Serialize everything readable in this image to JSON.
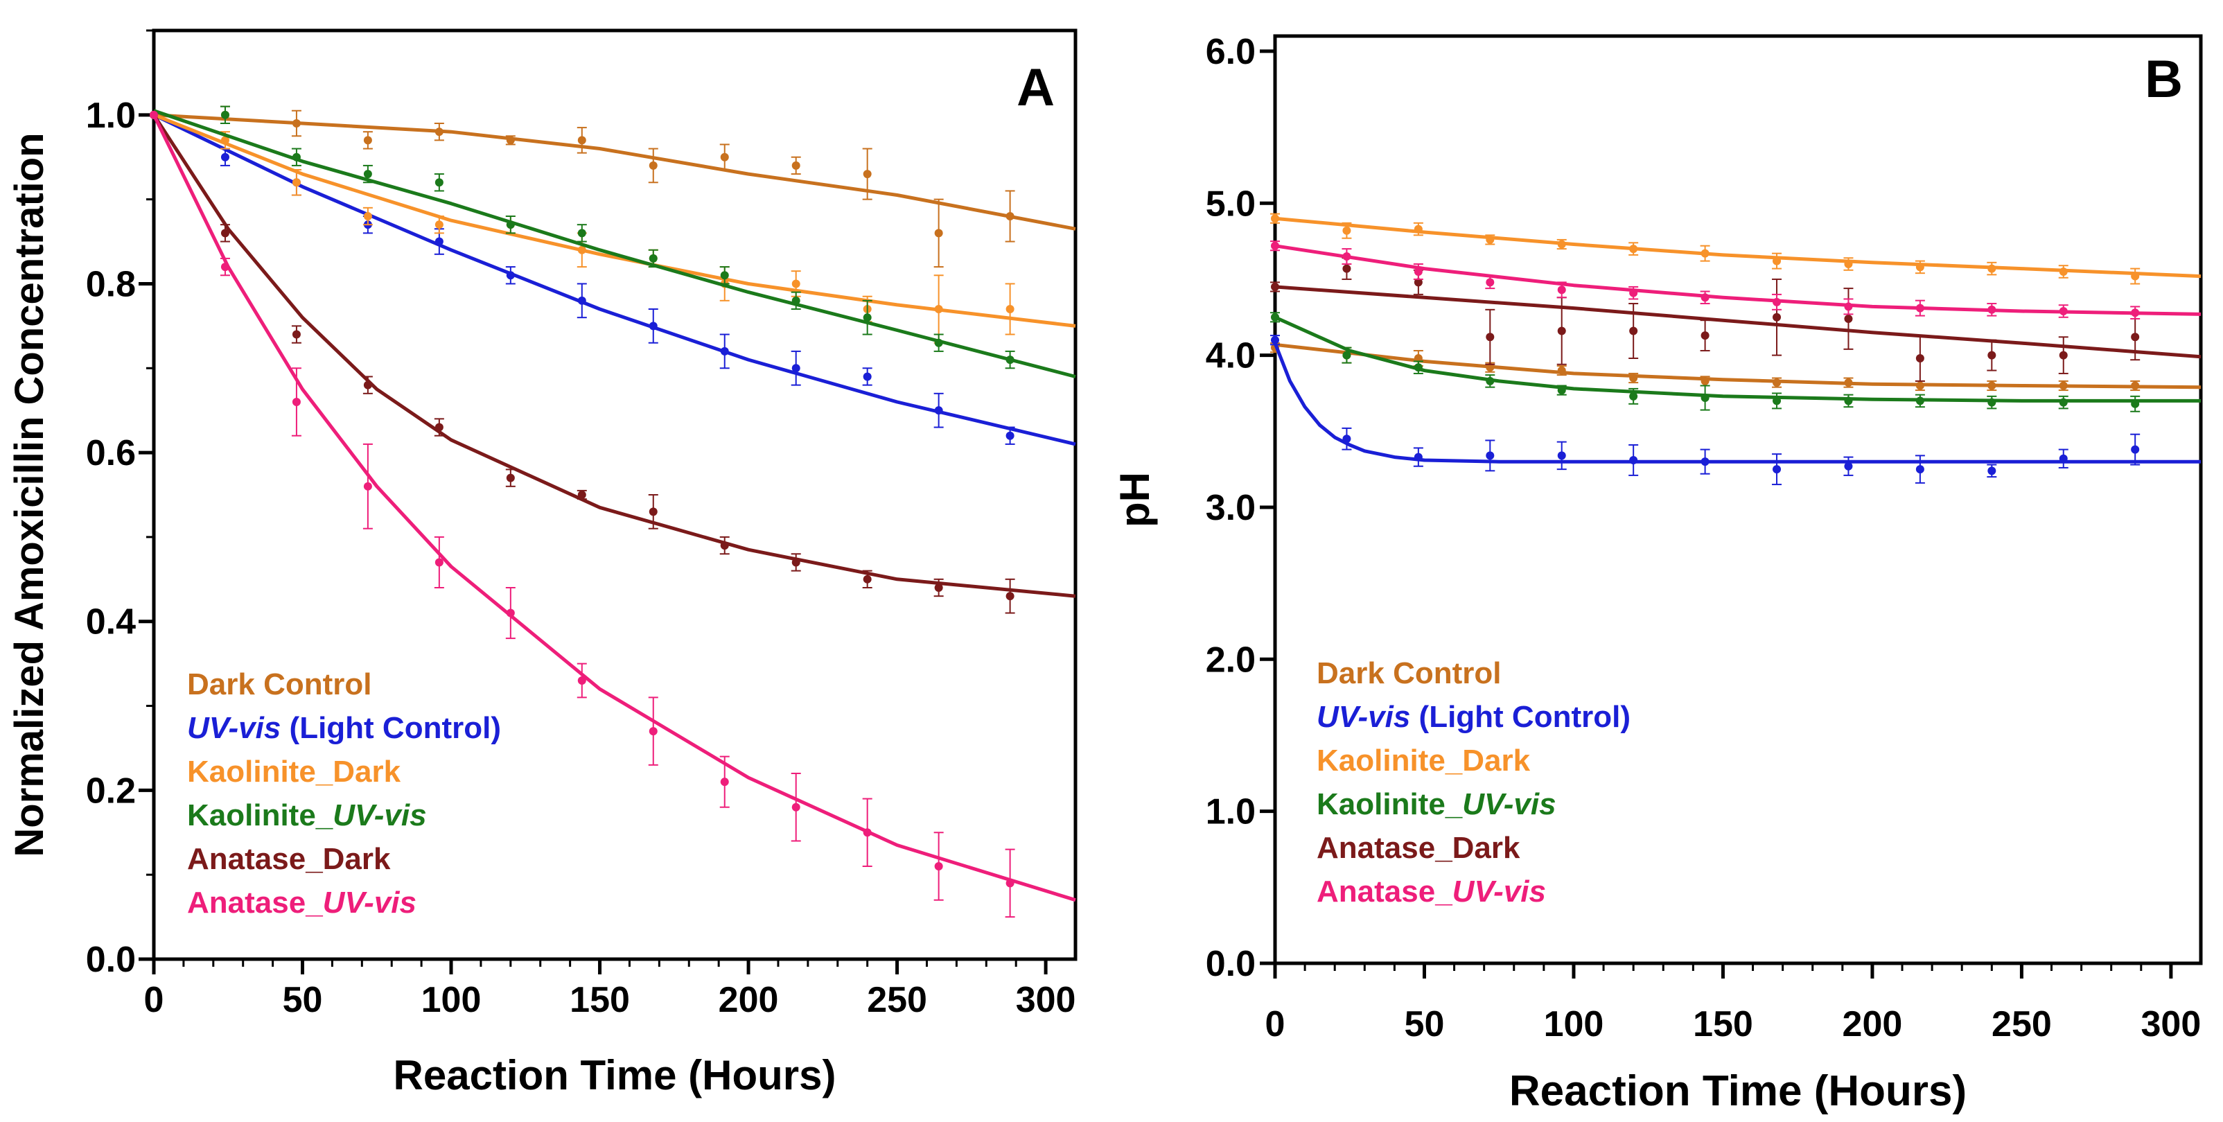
{
  "chart_data": [
    {
      "type": "line",
      "panel_label": "A",
      "xlabel": "Reaction Time (Hours)",
      "ylabel": "Normalized Amoxicillin Concentration",
      "xlim": [
        0,
        310
      ],
      "ylim": [
        0,
        1.1
      ],
      "xticks": [
        0,
        50,
        100,
        150,
        200,
        250,
        300
      ],
      "xtick_labels": [
        "0",
        "50",
        "100",
        "150",
        "200",
        "250",
        "300"
      ],
      "yticks": [
        0.0,
        0.2,
        0.4,
        0.6,
        0.8,
        1.0
      ],
      "ytick_labels": [
        "0.0",
        "0.2",
        "0.4",
        "0.6",
        "0.8",
        "1.0"
      ],
      "grid": false,
      "legend_position": "bottom-left",
      "series": [
        {
          "name": "Dark Control",
          "legend_parts": [
            "Dark Control"
          ],
          "legend_italic": [
            false
          ],
          "color": "#C8711E",
          "x": [
            0,
            24,
            48,
            72,
            96,
            120,
            144,
            168,
            192,
            216,
            240,
            264,
            288
          ],
          "y": [
            1.0,
            1.0,
            0.99,
            0.97,
            0.98,
            0.97,
            0.97,
            0.94,
            0.95,
            0.94,
            0.93,
            0.86,
            0.88
          ],
          "err": [
            0.0,
            0.01,
            0.015,
            0.01,
            0.01,
            0.005,
            0.015,
            0.02,
            0.015,
            0.01,
            0.03,
            0.04,
            0.03
          ],
          "fit_x": [
            0,
            50,
            100,
            150,
            200,
            250,
            310
          ],
          "fit_y": [
            1.0,
            0.99,
            0.98,
            0.96,
            0.93,
            0.905,
            0.865
          ]
        },
        {
          "name": "UV-vis (Light Control)",
          "legend_parts": [
            "UV-vis",
            " (Light Control)"
          ],
          "legend_italic": [
            true,
            false
          ],
          "color": "#1A1FD6",
          "x": [
            0,
            24,
            48,
            72,
            96,
            120,
            144,
            168,
            192,
            216,
            240,
            264,
            288
          ],
          "y": [
            1.0,
            0.95,
            0.92,
            0.87,
            0.85,
            0.81,
            0.78,
            0.75,
            0.72,
            0.7,
            0.69,
            0.65,
            0.62
          ],
          "err": [
            0.0,
            0.01,
            0.015,
            0.01,
            0.015,
            0.01,
            0.02,
            0.02,
            0.02,
            0.02,
            0.01,
            0.02,
            0.01
          ],
          "fit_x": [
            0,
            50,
            100,
            150,
            200,
            250,
            310
          ],
          "fit_y": [
            1.0,
            0.915,
            0.84,
            0.77,
            0.71,
            0.66,
            0.61
          ]
        },
        {
          "name": "Kaolinite_Dark",
          "legend_parts": [
            "Kaolinite_Dark"
          ],
          "legend_italic": [
            false
          ],
          "color": "#F7922A",
          "x": [
            0,
            24,
            48,
            72,
            96,
            120,
            144,
            168,
            192,
            216,
            240,
            264,
            288
          ],
          "y": [
            1.0,
            0.97,
            0.92,
            0.88,
            0.87,
            0.87,
            0.84,
            0.83,
            0.8,
            0.8,
            0.77,
            0.77,
            0.77
          ],
          "err": [
            0.0,
            0.01,
            0.015,
            0.01,
            0.01,
            0.01,
            0.02,
            0.01,
            0.02,
            0.015,
            0.015,
            0.04,
            0.03
          ],
          "fit_x": [
            0,
            50,
            100,
            150,
            200,
            250,
            310
          ],
          "fit_y": [
            1.0,
            0.93,
            0.875,
            0.835,
            0.8,
            0.775,
            0.75
          ]
        },
        {
          "name": "Kaolinite_UV-vis",
          "legend_parts": [
            "Kaolinite_",
            "UV-vis"
          ],
          "legend_italic": [
            false,
            true
          ],
          "color": "#1B7A1B",
          "x": [
            0,
            24,
            48,
            72,
            96,
            120,
            144,
            168,
            192,
            216,
            240,
            264,
            288
          ],
          "y": [
            1.0,
            1.0,
            0.95,
            0.93,
            0.92,
            0.87,
            0.86,
            0.83,
            0.81,
            0.78,
            0.76,
            0.73,
            0.71
          ],
          "err": [
            0.0,
            0.01,
            0.01,
            0.01,
            0.01,
            0.01,
            0.01,
            0.01,
            0.01,
            0.01,
            0.02,
            0.01,
            0.01
          ],
          "fit_x": [
            0,
            50,
            100,
            150,
            200,
            250,
            310
          ],
          "fit_y": [
            1.005,
            0.945,
            0.895,
            0.84,
            0.79,
            0.745,
            0.69
          ]
        },
        {
          "name": "Anatase_Dark",
          "legend_parts": [
            "Anatase_Dark"
          ],
          "legend_italic": [
            false
          ],
          "color": "#7B1A1A",
          "x": [
            0,
            24,
            48,
            72,
            96,
            120,
            144,
            168,
            192,
            216,
            240,
            264,
            288
          ],
          "y": [
            1.0,
            0.86,
            0.74,
            0.68,
            0.63,
            0.57,
            0.55,
            0.53,
            0.49,
            0.47,
            0.45,
            0.44,
            0.43
          ],
          "err": [
            0.0,
            0.01,
            0.01,
            0.01,
            0.01,
            0.01,
            0.005,
            0.02,
            0.01,
            0.01,
            0.01,
            0.01,
            0.02
          ],
          "fit_x": [
            0,
            25,
            50,
            75,
            100,
            150,
            200,
            250,
            310
          ],
          "fit_y": [
            1.0,
            0.865,
            0.76,
            0.675,
            0.615,
            0.535,
            0.485,
            0.45,
            0.43
          ]
        },
        {
          "name": "Anatase_UV-vis",
          "legend_parts": [
            "Anatase_",
            "UV-vis"
          ],
          "legend_italic": [
            false,
            true
          ],
          "color": "#EE1E7A",
          "x": [
            0,
            24,
            48,
            72,
            96,
            120,
            144,
            168,
            192,
            216,
            240,
            264,
            288
          ],
          "y": [
            1.0,
            0.82,
            0.66,
            0.56,
            0.47,
            0.41,
            0.33,
            0.27,
            0.21,
            0.18,
            0.15,
            0.11,
            0.09
          ],
          "err": [
            0.0,
            0.01,
            0.04,
            0.05,
            0.03,
            0.03,
            0.02,
            0.04,
            0.03,
            0.04,
            0.04,
            0.04,
            0.04
          ],
          "fit_x": [
            0,
            25,
            50,
            75,
            100,
            150,
            200,
            250,
            310
          ],
          "fit_y": [
            1.0,
            0.82,
            0.675,
            0.56,
            0.465,
            0.32,
            0.215,
            0.135,
            0.07
          ]
        }
      ]
    },
    {
      "type": "line",
      "panel_label": "B",
      "xlabel": "Reaction Time (Hours)",
      "ylabel": "pH",
      "xlim": [
        0,
        310
      ],
      "ylim": [
        0,
        6.1
      ],
      "xticks": [
        0,
        50,
        100,
        150,
        200,
        250,
        300
      ],
      "xtick_labels": [
        "0",
        "50",
        "100",
        "150",
        "200",
        "250",
        "300"
      ],
      "yticks": [
        0,
        1,
        2,
        3,
        4,
        5,
        6
      ],
      "ytick_labels": [
        "0.0",
        "1.0",
        "2.0",
        "3.0",
        "4.0",
        "5.0",
        "6.0"
      ],
      "grid": false,
      "legend_position": "bottom-left",
      "series": [
        {
          "name": "Dark Control",
          "legend_parts": [
            "Dark Control"
          ],
          "legend_italic": [
            false
          ],
          "color": "#C8711E",
          "x": [
            0,
            24,
            48,
            72,
            96,
            120,
            144,
            168,
            192,
            216,
            240,
            264,
            288
          ],
          "y": [
            4.05,
            4.0,
            3.98,
            3.92,
            3.9,
            3.85,
            3.83,
            3.82,
            3.82,
            3.8,
            3.8,
            3.8,
            3.8
          ],
          "err": [
            0.03,
            0.05,
            0.05,
            0.03,
            0.03,
            0.03,
            0.03,
            0.03,
            0.03,
            0.03,
            0.03,
            0.03,
            0.03
          ],
          "fit_x": [
            0,
            50,
            100,
            150,
            200,
            250,
            310
          ],
          "fit_y": [
            4.07,
            3.96,
            3.88,
            3.84,
            3.81,
            3.8,
            3.79
          ]
        },
        {
          "name": "UV-vis (Light Control)",
          "legend_parts": [
            "UV-vis",
            " (Light Control)"
          ],
          "legend_italic": [
            true,
            false
          ],
          "color": "#1A1FD6",
          "x": [
            0,
            24,
            48,
            72,
            96,
            120,
            144,
            168,
            192,
            216,
            240,
            264,
            288
          ],
          "y": [
            4.1,
            3.45,
            3.33,
            3.34,
            3.34,
            3.31,
            3.3,
            3.25,
            3.27,
            3.25,
            3.24,
            3.32,
            3.38
          ],
          "err": [
            0.03,
            0.07,
            0.06,
            0.1,
            0.09,
            0.1,
            0.08,
            0.1,
            0.06,
            0.09,
            0.04,
            0.06,
            0.1
          ],
          "fit_x": [
            0,
            5,
            10,
            15,
            20,
            25,
            30,
            40,
            50,
            75,
            100,
            150,
            200,
            250,
            310
          ],
          "fit_y": [
            4.08,
            3.83,
            3.66,
            3.54,
            3.46,
            3.41,
            3.37,
            3.33,
            3.31,
            3.3,
            3.3,
            3.3,
            3.3,
            3.3,
            3.3
          ]
        },
        {
          "name": "Kaolinite_Dark",
          "legend_parts": [
            "Kaolinite_Dark"
          ],
          "legend_italic": [
            false
          ],
          "color": "#F7922A",
          "x": [
            0,
            24,
            48,
            72,
            96,
            120,
            144,
            168,
            192,
            216,
            240,
            264,
            288
          ],
          "y": [
            4.9,
            4.82,
            4.83,
            4.76,
            4.73,
            4.7,
            4.67,
            4.62,
            4.6,
            4.58,
            4.57,
            4.55,
            4.52
          ],
          "err": [
            0.03,
            0.05,
            0.04,
            0.03,
            0.03,
            0.04,
            0.05,
            0.05,
            0.04,
            0.04,
            0.04,
            0.04,
            0.05
          ],
          "fit_x": [
            0,
            50,
            100,
            150,
            200,
            250,
            310
          ],
          "fit_y": [
            4.9,
            4.81,
            4.73,
            4.66,
            4.61,
            4.57,
            4.52
          ]
        },
        {
          "name": "Kaolinite_UV-vis",
          "legend_parts": [
            "Kaolinite_",
            "UV-vis"
          ],
          "legend_italic": [
            false,
            true
          ],
          "color": "#1B7A1B",
          "x": [
            0,
            24,
            48,
            72,
            96,
            120,
            144,
            168,
            192,
            216,
            240,
            264,
            288
          ],
          "y": [
            4.25,
            4.0,
            3.92,
            3.83,
            3.77,
            3.73,
            3.72,
            3.7,
            3.7,
            3.7,
            3.69,
            3.69,
            3.68
          ],
          "err": [
            0.03,
            0.05,
            0.04,
            0.04,
            0.03,
            0.05,
            0.08,
            0.05,
            0.04,
            0.04,
            0.04,
            0.04,
            0.05
          ],
          "fit_x": [
            0,
            25,
            50,
            75,
            100,
            150,
            200,
            250,
            310
          ],
          "fit_y": [
            4.25,
            4.03,
            3.9,
            3.83,
            3.78,
            3.73,
            3.71,
            3.7,
            3.7
          ]
        },
        {
          "name": "Anatase_Dark",
          "legend_parts": [
            "Anatase_Dark"
          ],
          "legend_italic": [
            false
          ],
          "color": "#7B1A1A",
          "x": [
            0,
            24,
            48,
            72,
            96,
            120,
            144,
            168,
            192,
            216,
            240,
            264,
            288
          ],
          "y": [
            4.45,
            4.57,
            4.48,
            4.12,
            4.16,
            4.16,
            4.13,
            4.25,
            4.24,
            3.98,
            4.0,
            4.0,
            4.12
          ],
          "err": [
            0.03,
            0.07,
            0.08,
            0.18,
            0.22,
            0.18,
            0.1,
            0.25,
            0.2,
            0.15,
            0.1,
            0.12,
            0.15
          ],
          "fit_x": [
            0,
            50,
            100,
            150,
            200,
            250,
            310
          ],
          "fit_y": [
            4.45,
            4.38,
            4.31,
            4.23,
            4.15,
            4.08,
            3.99
          ]
        },
        {
          "name": "Anatase_UV-vis",
          "legend_parts": [
            "Anatase_",
            "UV-vis"
          ],
          "legend_italic": [
            false,
            true
          ],
          "color": "#EE1E7A",
          "x": [
            0,
            24,
            48,
            72,
            96,
            120,
            144,
            168,
            192,
            216,
            240,
            264,
            288
          ],
          "y": [
            4.72,
            4.65,
            4.55,
            4.48,
            4.43,
            4.41,
            4.38,
            4.35,
            4.32,
            4.31,
            4.3,
            4.29,
            4.28
          ],
          "err": [
            0.03,
            0.05,
            0.05,
            0.04,
            0.05,
            0.04,
            0.04,
            0.05,
            0.05,
            0.05,
            0.04,
            0.04,
            0.04
          ],
          "fit_x": [
            0,
            50,
            100,
            150,
            200,
            250,
            310
          ],
          "fit_y": [
            4.72,
            4.57,
            4.46,
            4.38,
            4.32,
            4.29,
            4.27
          ]
        }
      ]
    }
  ]
}
